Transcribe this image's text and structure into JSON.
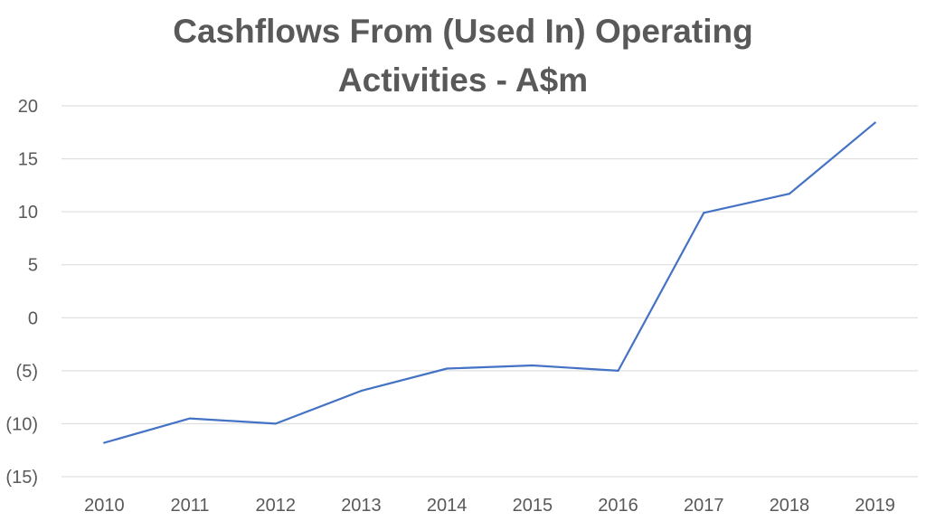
{
  "chart_data": {
    "type": "line",
    "title_lines": [
      "Cashflows From (Used In) Operating",
      "Activities - A$m"
    ],
    "categories": [
      "2010",
      "2011",
      "2012",
      "2013",
      "2014",
      "2015",
      "2016",
      "2017",
      "2018",
      "2019"
    ],
    "series": [
      {
        "values": [
          -11.8,
          -9.5,
          -10.0,
          -6.9,
          -4.8,
          -4.5,
          -5.0,
          9.9,
          11.7,
          18.4
        ],
        "color": "#4472C4"
      }
    ],
    "ylim": [
      -15,
      20
    ],
    "y_ticks": [
      -15,
      -10,
      -5,
      0,
      5,
      10,
      15,
      20
    ],
    "y_tick_labels": [
      "(15)",
      "(10)",
      "(5)",
      "0",
      "5",
      "10",
      "15",
      "20"
    ],
    "xlabel": "",
    "ylabel": "",
    "grid": "horizontal",
    "legend": "none"
  }
}
